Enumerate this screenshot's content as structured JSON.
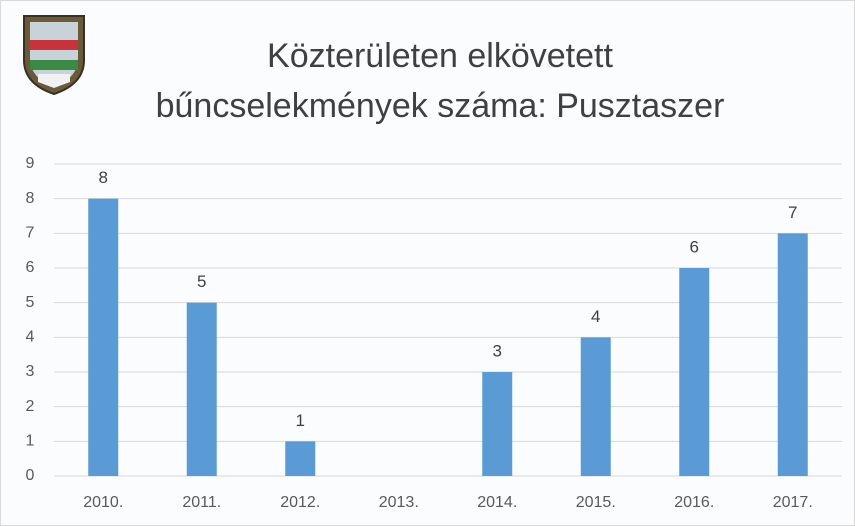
{
  "chart_data": {
    "type": "bar",
    "title": [
      "Közterületen elkövetett",
      "bűncselekmények száma: Pusztaszer"
    ],
    "categories": [
      "2010.",
      "2011.",
      "2012.",
      "2013.",
      "2014.",
      "2015.",
      "2016.",
      "2017."
    ],
    "values": [
      8,
      5,
      1,
      null,
      3,
      4,
      6,
      7
    ],
    "color": "#5b9bd5",
    "ylim": [
      0,
      9
    ],
    "yticks": [
      0,
      1,
      2,
      3,
      4,
      5,
      6,
      7,
      8,
      9
    ],
    "grid": true
  }
}
